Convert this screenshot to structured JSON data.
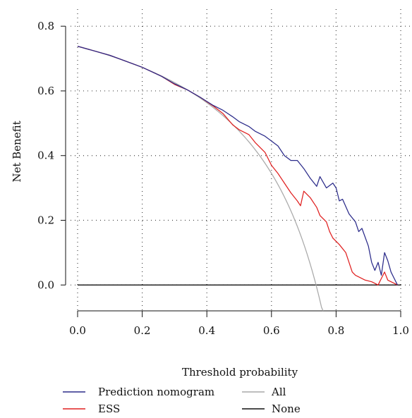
{
  "chart_data": {
    "type": "line",
    "title": "",
    "xlabel": "Threshold probability",
    "ylabel": "Net Benefit",
    "xlim": [
      0,
      1
    ],
    "ylim": [
      -0.08,
      0.82
    ],
    "xticks": [
      0.0,
      0.2,
      0.4,
      0.6,
      0.8,
      1.0
    ],
    "xtick_labels": [
      "0.0",
      "0.2",
      "0.4",
      "0.6",
      "0.8",
      "1.0"
    ],
    "yticks": [
      0.0,
      0.2,
      0.4,
      0.6,
      0.8
    ],
    "ytick_labels": [
      "0.0",
      "0.2",
      "0.4",
      "0.6",
      "0.8"
    ],
    "grid": true,
    "legend_position": "bottom",
    "series": [
      {
        "name": "Prediction nomogram",
        "color": "#2b2b8a",
        "points": [
          [
            0.0,
            0.738
          ],
          [
            0.1,
            0.71
          ],
          [
            0.2,
            0.673
          ],
          [
            0.26,
            0.645
          ],
          [
            0.3,
            0.622
          ],
          [
            0.34,
            0.603
          ],
          [
            0.38,
            0.58
          ],
          [
            0.42,
            0.555
          ],
          [
            0.45,
            0.54
          ],
          [
            0.48,
            0.52
          ],
          [
            0.5,
            0.505
          ],
          [
            0.53,
            0.49
          ],
          [
            0.55,
            0.475
          ],
          [
            0.58,
            0.46
          ],
          [
            0.6,
            0.445
          ],
          [
            0.62,
            0.43
          ],
          [
            0.64,
            0.4
          ],
          [
            0.66,
            0.385
          ],
          [
            0.68,
            0.385
          ],
          [
            0.7,
            0.36
          ],
          [
            0.72,
            0.33
          ],
          [
            0.74,
            0.305
          ],
          [
            0.75,
            0.335
          ],
          [
            0.77,
            0.3
          ],
          [
            0.79,
            0.315
          ],
          [
            0.8,
            0.3
          ],
          [
            0.81,
            0.26
          ],
          [
            0.82,
            0.265
          ],
          [
            0.84,
            0.22
          ],
          [
            0.86,
            0.195
          ],
          [
            0.87,
            0.165
          ],
          [
            0.88,
            0.175
          ],
          [
            0.9,
            0.12
          ],
          [
            0.91,
            0.07
          ],
          [
            0.92,
            0.045
          ],
          [
            0.93,
            0.07
          ],
          [
            0.94,
            0.03
          ],
          [
            0.95,
            0.1
          ],
          [
            0.96,
            0.075
          ],
          [
            0.97,
            0.04
          ],
          [
            0.98,
            0.02
          ],
          [
            0.99,
            0.0
          ]
        ]
      },
      {
        "name": "ESS",
        "color": "#e02020",
        "points": [
          [
            0.0,
            0.738
          ],
          [
            0.1,
            0.71
          ],
          [
            0.2,
            0.673
          ],
          [
            0.26,
            0.645
          ],
          [
            0.3,
            0.62
          ],
          [
            0.34,
            0.603
          ],
          [
            0.38,
            0.58
          ],
          [
            0.42,
            0.553
          ],
          [
            0.45,
            0.53
          ],
          [
            0.48,
            0.495
          ],
          [
            0.5,
            0.48
          ],
          [
            0.53,
            0.465
          ],
          [
            0.55,
            0.44
          ],
          [
            0.58,
            0.41
          ],
          [
            0.6,
            0.37
          ],
          [
            0.62,
            0.345
          ],
          [
            0.64,
            0.315
          ],
          [
            0.66,
            0.285
          ],
          [
            0.68,
            0.26
          ],
          [
            0.69,
            0.245
          ],
          [
            0.7,
            0.29
          ],
          [
            0.72,
            0.27
          ],
          [
            0.74,
            0.24
          ],
          [
            0.75,
            0.215
          ],
          [
            0.77,
            0.195
          ],
          [
            0.78,
            0.165
          ],
          [
            0.79,
            0.145
          ],
          [
            0.81,
            0.125
          ],
          [
            0.83,
            0.1
          ],
          [
            0.84,
            0.07
          ],
          [
            0.85,
            0.04
          ],
          [
            0.86,
            0.03
          ],
          [
            0.87,
            0.025
          ],
          [
            0.89,
            0.015
          ],
          [
            0.91,
            0.01
          ],
          [
            0.92,
            0.005
          ],
          [
            0.93,
            0.0
          ],
          [
            0.94,
            0.02
          ],
          [
            0.95,
            0.04
          ],
          [
            0.96,
            0.015
          ],
          [
            0.97,
            0.01
          ],
          [
            0.98,
            0.005
          ],
          [
            0.99,
            0.0
          ]
        ]
      },
      {
        "name": "All",
        "color": "#a9a9a9",
        "prevalence": 0.738,
        "points_function": "prevalence - (1 - prevalence) * x / (1 - x)",
        "x_range": [
          0,
          0.76
        ]
      },
      {
        "name": "None",
        "color": "#111111",
        "points": [
          [
            0.0,
            0.0
          ],
          [
            1.0,
            0.0
          ]
        ]
      }
    ]
  }
}
